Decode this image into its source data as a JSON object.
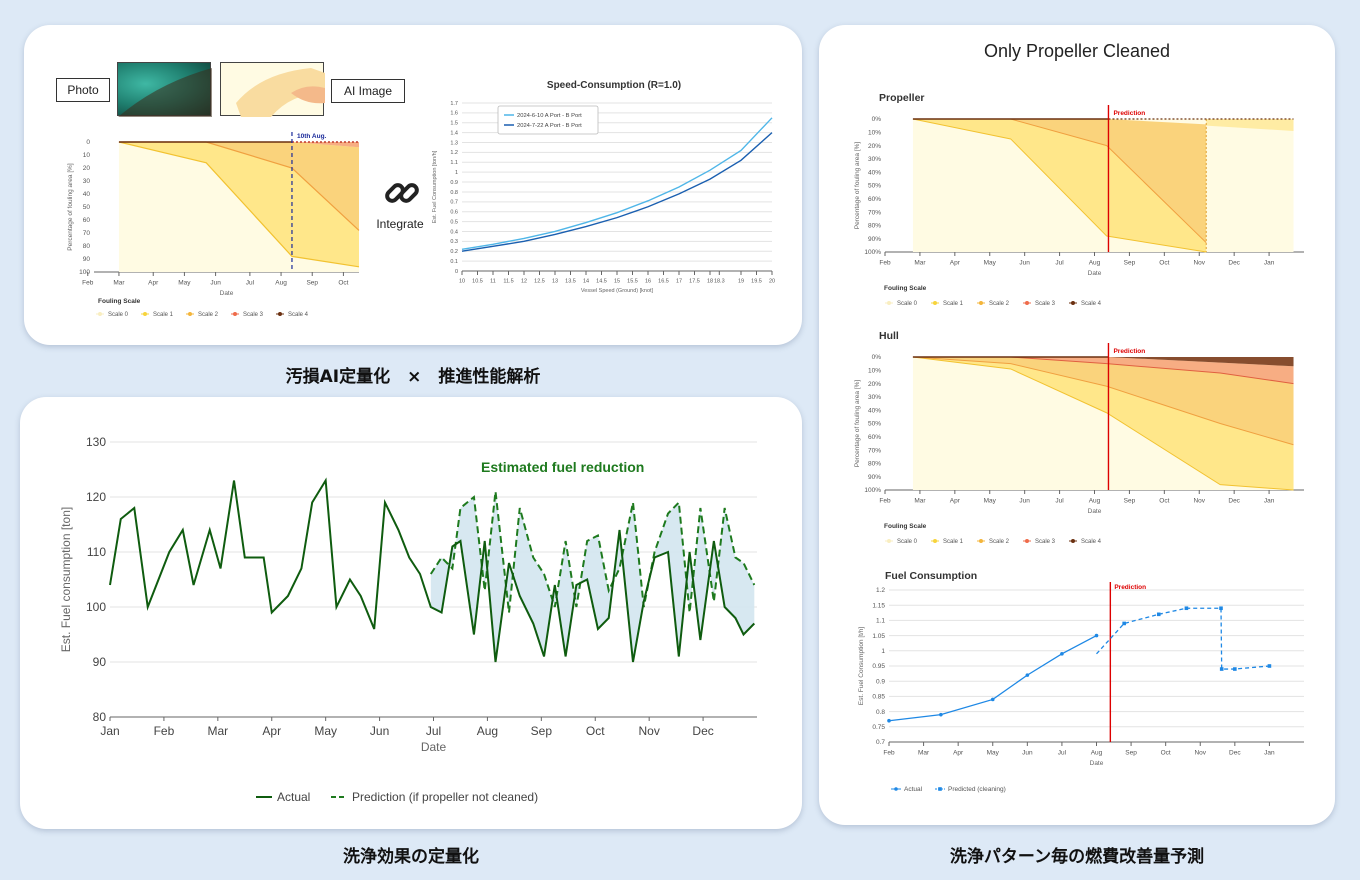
{
  "captions": {
    "fouling_analysis": "汚損AI定量化　×　推進性能解析",
    "cleaning_effect": "洗浄効果の定量化",
    "pattern_prediction": "洗浄パターン毎の燃費改善量予測"
  },
  "top_left": {
    "photo_label": "Photo",
    "ai_image_label": "AI Image",
    "integrate_label": "Integrate",
    "link_icon": "link-icon",
    "colors": {
      "scale0": "#fffbe3",
      "scale1": "#ffe37a",
      "scale2": "#f8c65a",
      "scale3": "#f59a6a",
      "scale4": "#7a3a1a"
    }
  },
  "right_panel": {
    "title": "Only Propeller Cleaned",
    "prediction_label": "Prediction"
  },
  "chart_data": [
    {
      "id": "fouling_small",
      "type": "area",
      "title": "",
      "xlabel": "Date",
      "ylabel": "Percentage of fouling area [%]",
      "x_ticks": [
        "Feb",
        "Mar",
        "Apr",
        "May",
        "Jun",
        "Jul",
        "Aug",
        "Sep",
        "Oct"
      ],
      "y_ticks": [
        "0",
        "10",
        "20",
        "30",
        "40",
        "50",
        "60",
        "70",
        "80",
        "90",
        "100"
      ],
      "ylim": [
        0,
        100
      ],
      "xlim": [
        0,
        8.5
      ],
      "annotation": "10th Aug.",
      "annotation_x": 6.35,
      "legend_title": "Fouling Scale",
      "legend": [
        "Scale 0",
        "Scale 1",
        "Scale 2",
        "Scale 3",
        "Scale 4"
      ],
      "boundaries": [
        {
          "name": "Scale 1",
          "x": [
            0.8,
            3.6,
            6.35,
            8.5
          ],
          "y": [
            0,
            16,
            88,
            96
          ]
        },
        {
          "name": "Scale 2",
          "x": [
            0.8,
            3.6,
            6.35,
            8.5
          ],
          "y": [
            0,
            0,
            20,
            68
          ]
        },
        {
          "name": "Scale 3",
          "x": [
            0.8,
            3.6,
            6.35,
            8.5
          ],
          "y": [
            0,
            0,
            0,
            4
          ]
        }
      ]
    },
    {
      "id": "speed_consumption",
      "type": "line",
      "title": "Speed-Consumption (R=1.0)",
      "xlabel": "Vessel Speed (Ground) [knot]",
      "ylabel": "Est. Fuel Consumption [ton/h]",
      "x_ticks": [
        "10",
        "10.5",
        "11",
        "11.5",
        "12",
        "12.5",
        "13",
        "13.5",
        "14",
        "14.5",
        "15",
        "15.5",
        "16",
        "16.5",
        "17",
        "17.5",
        "18",
        "18.3",
        "19",
        "19.5",
        "20"
      ],
      "y_ticks": [
        "0",
        "0.1",
        "0.2",
        "0.3",
        "0.4",
        "0.5",
        "0.6",
        "0.7",
        "0.8",
        "0.9",
        "1",
        "1.1",
        "1.2",
        "1.3",
        "1.4",
        "1.5",
        "1.6",
        "1.7"
      ],
      "xlim": [
        10,
        20
      ],
      "ylim": [
        0,
        1.7
      ],
      "series": [
        {
          "name": "2024-6-10 A Port - B Port",
          "x": [
            10,
            11,
            12,
            13,
            14,
            15,
            16,
            17,
            18,
            19,
            20
          ],
          "y": [
            0.22,
            0.27,
            0.33,
            0.4,
            0.49,
            0.59,
            0.71,
            0.85,
            1.02,
            1.22,
            1.55
          ]
        },
        {
          "name": "2024-7-22 A Port - B Port",
          "x": [
            10,
            11,
            12,
            13,
            14,
            15,
            16,
            17,
            18,
            19,
            20
          ],
          "y": [
            0.2,
            0.25,
            0.3,
            0.37,
            0.45,
            0.54,
            0.65,
            0.78,
            0.93,
            1.12,
            1.4
          ]
        }
      ]
    },
    {
      "id": "fuel_reduction",
      "type": "line",
      "title": "Estimated fuel reduction",
      "xlabel": "Date",
      "ylabel": "Est. Fuel consumption [ton]",
      "x_ticks": [
        "Jan",
        "Feb",
        "Mar",
        "Apr",
        "May",
        "Jun",
        "Jul",
        "Aug",
        "Sep",
        "Oct",
        "Nov",
        "Dec"
      ],
      "y_ticks": [
        "80",
        "90",
        "100",
        "110",
        "120",
        "130"
      ],
      "xlim": [
        0,
        12
      ],
      "ylim": [
        80,
        130
      ],
      "series": [
        {
          "name": "Actual",
          "x": [
            0,
            0.2,
            0.45,
            0.7,
            1.1,
            1.35,
            1.55,
            1.85,
            2.05,
            2.3,
            2.5,
            2.85,
            3.0,
            3.3,
            3.55,
            3.75,
            4.0,
            4.2,
            4.45,
            4.65,
            4.9,
            5.1,
            5.35,
            5.55,
            5.75,
            5.95,
            6.15,
            6.35,
            6.5,
            6.75,
            6.95,
            7.15,
            7.4,
            7.6,
            7.85,
            8.05,
            8.25,
            8.45,
            8.65,
            8.85,
            9.05,
            9.25,
            9.45,
            9.7,
            9.9,
            10.1,
            10.35,
            10.55,
            10.75,
            10.95,
            11.2,
            11.4,
            11.6,
            11.75,
            11.95
          ],
          "y": [
            104,
            116,
            118,
            100,
            110,
            114,
            104,
            114,
            107,
            123,
            109,
            109,
            99,
            102,
            107,
            119,
            123,
            100,
            105,
            102,
            96,
            119,
            114,
            109,
            106,
            100,
            99,
            111,
            112,
            95,
            112,
            90,
            108,
            102,
            97,
            91,
            104,
            91,
            104,
            105,
            96,
            98,
            114,
            90,
            101,
            109,
            110,
            91,
            110,
            94,
            112,
            100,
            98,
            95,
            97
          ]
        },
        {
          "name": "Prediction (if propeller not cleaned)",
          "x": [
            5.95,
            6.15,
            6.35,
            6.5,
            6.75,
            6.95,
            7.15,
            7.4,
            7.6,
            7.85,
            8.05,
            8.25,
            8.45,
            8.65,
            8.85,
            9.05,
            9.25,
            9.45,
            9.7,
            9.9,
            10.1,
            10.35,
            10.55,
            10.75,
            10.95,
            11.2,
            11.4,
            11.6,
            11.75,
            11.95
          ],
          "y": [
            106,
            109,
            107,
            118,
            120,
            103,
            121,
            99,
            118,
            109,
            106,
            100,
            112,
            100,
            112,
            113,
            103,
            107,
            119,
            100,
            110,
            117,
            119,
            99,
            118,
            101,
            118,
            109,
            108,
            104
          ]
        }
      ]
    },
    {
      "id": "propeller",
      "type": "area",
      "title": "Propeller",
      "xlabel": "Date",
      "ylabel": "Percentage of fouling area [%]",
      "x_ticks": [
        "Feb",
        "Mar",
        "Apr",
        "May",
        "Jun",
        "Jul",
        "Aug",
        "Sep",
        "Oct",
        "Nov",
        "Dec",
        "Jan"
      ],
      "y_ticks": [
        "0%",
        "10%",
        "20%",
        "30%",
        "40%",
        "50%",
        "60%",
        "70%",
        "80%",
        "90%",
        "100%"
      ],
      "xlim": [
        0,
        12
      ],
      "ylim": [
        0,
        100
      ],
      "prediction_x": 6.4,
      "legend_title": "Fouling Scale",
      "legend": [
        "Scale 0",
        "Scale 1",
        "Scale 2",
        "Scale 3",
        "Scale 4"
      ]
    },
    {
      "id": "hull",
      "type": "area",
      "title": "Hull",
      "xlabel": "Date",
      "ylabel": "Percentage of fouling area [%]",
      "x_ticks": [
        "Feb",
        "Mar",
        "Apr",
        "May",
        "Jun",
        "Jul",
        "Aug",
        "Sep",
        "Oct",
        "Nov",
        "Dec",
        "Jan"
      ],
      "y_ticks": [
        "0%",
        "10%",
        "20%",
        "30%",
        "40%",
        "50%",
        "60%",
        "70%",
        "80%",
        "90%",
        "100%"
      ],
      "xlim": [
        0,
        12
      ],
      "ylim": [
        0,
        100
      ],
      "prediction_x": 6.4,
      "legend_title": "Fouling Scale",
      "legend": [
        "Scale 0",
        "Scale 1",
        "Scale 2",
        "Scale 3",
        "Scale 4"
      ]
    },
    {
      "id": "fuel_consumption",
      "type": "line",
      "title": "Fuel Consumption",
      "xlabel": "Date",
      "ylabel": "Est. Fuel Consumption [t/h]",
      "x_ticks": [
        "Feb",
        "Mar",
        "Apr",
        "May",
        "Jun",
        "Jul",
        "Aug",
        "Sep",
        "Oct",
        "Nov",
        "Dec",
        "Jan"
      ],
      "y_ticks": [
        "0.7",
        "0.75",
        "0.8",
        "0.85",
        "0.9",
        "0.95",
        "1",
        "1.05",
        "1.1",
        "1.15",
        "1.2"
      ],
      "xlim": [
        0,
        12
      ],
      "ylim": [
        0.7,
        1.2
      ],
      "prediction_x": 6.4,
      "legend": [
        "Actual",
        "Predicted (cleaning)"
      ],
      "series": [
        {
          "name": "Actual",
          "x": [
            0,
            1.5,
            3,
            4,
            5,
            6
          ],
          "y": [
            0.77,
            0.79,
            0.84,
            0.92,
            0.99,
            1.05
          ]
        },
        {
          "name": "Predicted (cleaning)",
          "x": [
            6,
            6.8,
            7.8,
            8.6,
            9.6,
            9.62,
            10,
            11
          ],
          "y": [
            0.99,
            1.09,
            1.12,
            1.14,
            1.14,
            0.94,
            0.94,
            0.95
          ]
        }
      ]
    }
  ]
}
